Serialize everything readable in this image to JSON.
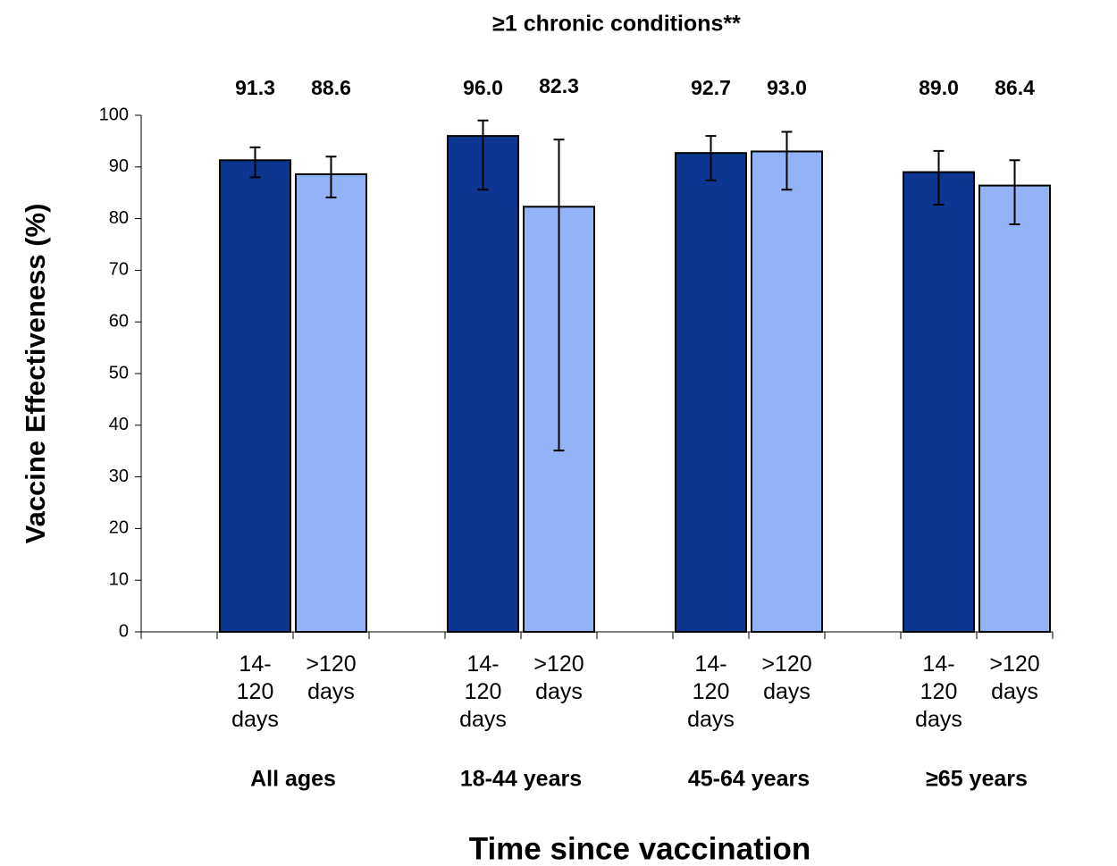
{
  "chart_data": {
    "type": "bar",
    "title": "≥1 chronic conditions**",
    "y_label": "Vaccine Effectiveness (%)",
    "x_label": "Time since vaccination",
    "categories": [
      "All ages",
      "18-44 years",
      "45-64 years",
      "≥65 years"
    ],
    "series": [
      {
        "name": "14-120 days",
        "color": "#0d3690",
        "values": [
          91.3,
          96.0,
          92.7,
          89.0
        ],
        "value_labels": [
          "91.3",
          "96.0",
          "92.7",
          "89.0"
        ],
        "error_low": [
          88.0,
          85.6,
          87.4,
          82.7
        ],
        "error_high": [
          93.8,
          99.0,
          96.0,
          93.1
        ]
      },
      {
        "name": ">120 days",
        "color": "#93b3f7",
        "values": [
          88.6,
          82.3,
          93.0,
          86.4
        ],
        "value_labels": [
          "88.6",
          "82.3",
          "93.0",
          "86.4"
        ],
        "error_low": [
          84.1,
          35.1,
          85.6,
          78.9
        ],
        "error_high": [
          92.0,
          95.3,
          96.8,
          91.3
        ]
      }
    ],
    "ylim": [
      0,
      100
    ],
    "yticks": [
      0,
      10,
      20,
      30,
      40,
      50,
      60,
      70,
      80,
      90,
      100
    ]
  }
}
